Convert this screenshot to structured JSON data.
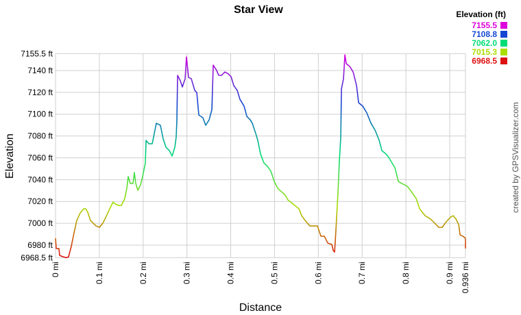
{
  "chart_data": {
    "type": "line",
    "title": "Star View",
    "xlabel": "Distance",
    "ylabel": "Elevation",
    "watermark": "created by GPSVisualizer.com",
    "legend_title": "Elevation (ft)",
    "legend": [
      {
        "value": 7155.5,
        "label": "7155.5",
        "color": "#dd00dd"
      },
      {
        "value": 7108.8,
        "label": "7108.8",
        "color": "#1446d2"
      },
      {
        "value": 7062.0,
        "label": "7062.0",
        "color": "#00dd77"
      },
      {
        "value": 7015.3,
        "label": "7015.3",
        "color": "#aadd00"
      },
      {
        "value": 6968.5,
        "label": "6968.5",
        "color": "#dd1111"
      }
    ],
    "grid": true,
    "xlim": [
      0,
      0.936
    ],
    "ylim": [
      6968.5,
      7155.5
    ],
    "xticks": [
      {
        "value": 0,
        "label": "0 mi"
      },
      {
        "value": 0.1,
        "label": "0.1 mi"
      },
      {
        "value": 0.2,
        "label": "0.2 mi"
      },
      {
        "value": 0.3,
        "label": "0.3 mi"
      },
      {
        "value": 0.4,
        "label": "0.4 mi"
      },
      {
        "value": 0.5,
        "label": "0.5 mi"
      },
      {
        "value": 0.6,
        "label": "0.6 mi"
      },
      {
        "value": 0.7,
        "label": "0.7 mi"
      },
      {
        "value": 0.8,
        "label": "0.8 mi"
      },
      {
        "value": 0.9,
        "label": "0.9 mi"
      },
      {
        "value": 0.936,
        "label": "0.936 mi"
      }
    ],
    "yticks": [
      {
        "value": 6968.5,
        "label": "6968.5 ft"
      },
      {
        "value": 6980,
        "label": "6980 ft"
      },
      {
        "value": 7000,
        "label": "7000 ft"
      },
      {
        "value": 7020,
        "label": "7020 ft"
      },
      {
        "value": 7040,
        "label": "7040 ft"
      },
      {
        "value": 7060,
        "label": "7060 ft"
      },
      {
        "value": 7080,
        "label": "7080 ft"
      },
      {
        "value": 7100,
        "label": "7100 ft"
      },
      {
        "value": 7120,
        "label": "7120 ft"
      },
      {
        "value": 7140,
        "label": "7140 ft"
      },
      {
        "value": 7155.5,
        "label": "7155.5 ft"
      }
    ],
    "x": [
      0,
      0.0016,
      0.0078,
      0.0094,
      0.0172,
      0.025,
      0.0297,
      0.036,
      0.0423,
      0.0485,
      0.0564,
      0.0642,
      0.0689,
      0.0736,
      0.0798,
      0.0845,
      0.0924,
      0.1002,
      0.108,
      0.1158,
      0.1237,
      0.1315,
      0.1362,
      0.144,
      0.1503,
      0.1581,
      0.1628,
      0.166,
      0.1706,
      0.1769,
      0.18,
      0.1832,
      0.1879,
      0.1941,
      0.1988,
      0.2051,
      0.2067,
      0.2129,
      0.2207,
      0.2239,
      0.2301,
      0.2395,
      0.2458,
      0.2521,
      0.2599,
      0.2662,
      0.2724,
      0.2755,
      0.2771,
      0.2787,
      0.2849,
      0.2896,
      0.2959,
      0.299,
      0.3037,
      0.31,
      0.3178,
      0.3225,
      0.3272,
      0.3366,
      0.3429,
      0.3507,
      0.357,
      0.3601,
      0.3679,
      0.3726,
      0.3789,
      0.3867,
      0.3945,
      0.4008,
      0.407,
      0.4149,
      0.4211,
      0.4305,
      0.4368,
      0.4446,
      0.4493,
      0.4571,
      0.4618,
      0.4681,
      0.4759,
      0.4838,
      0.4916,
      0.4994,
      0.5072,
      0.5245,
      0.5307,
      0.5464,
      0.5558,
      0.562,
      0.5699,
      0.5808,
      0.598,
      0.6059,
      0.6137,
      0.6215,
      0.6309,
      0.6341,
      0.6372,
      0.6403,
      0.645,
      0.6481,
      0.6513,
      0.6528,
      0.6575,
      0.6607,
      0.6638,
      0.6716,
      0.6795,
      0.6873,
      0.692,
      0.7014,
      0.7108,
      0.7202,
      0.7296,
      0.739,
      0.7452,
      0.7546,
      0.7609,
      0.7749,
      0.7828,
      0.7906,
      0.8031,
      0.8125,
      0.8235,
      0.8313,
      0.8438,
      0.8564,
      0.8673,
      0.8752,
      0.883,
      0.8908,
      0.9002,
      0.908,
      0.9143,
      0.9205,
      0.9237,
      0.9299,
      0.936,
      0.936
    ],
    "values": [
      6986.3,
      6976.9,
      6976.9,
      6970.6,
      6969.3,
      6968.5,
      6969.3,
      6978.8,
      6991.3,
      7002.6,
      7009.5,
      7013.3,
      7013.3,
      7010.1,
      7002.6,
      7000.7,
      6997.6,
      6996.3,
      7000.1,
      7006.4,
      7013.3,
      7019.5,
      7017.7,
      7016.4,
      7016.4,
      7022.7,
      7032.1,
      7042.8,
      7036.5,
      7036.5,
      7046.5,
      7036.5,
      7030.2,
      7035.2,
      7042.8,
      7055.3,
      7076.0,
      7072.9,
      7072.9,
      7079.1,
      7091.7,
      7089.8,
      7077.3,
      7069.7,
      7066.6,
      7061.6,
      7069.7,
      7079.1,
      7094.8,
      7135.6,
      7130.6,
      7124.9,
      7132.5,
      7152.5,
      7133.7,
      7132.5,
      7121.8,
      7119.9,
      7099.2,
      7096.7,
      7089.8,
      7094.8,
      7104.2,
      7145.0,
      7140,
      7135.6,
      7135.6,
      7138.7,
      7136.9,
      7134.4,
      7126.2,
      7121.8,
      7113.6,
      7107.4,
      7098.0,
      7094.8,
      7091.7,
      7082.3,
      7076.0,
      7063.5,
      7055.3,
      7052.2,
      7047.8,
      7038.4,
      7032.1,
      7025.8,
      7021.4,
      7016.4,
      7013.3,
      7007.0,
      7002.6,
      6997.6,
      6997.6,
      6988.2,
      6988.2,
      6981.9,
      6980.6,
      6975.0,
      6973.7,
      6994.4,
      7029.0,
      7057.2,
      7079.1,
      7123.1,
      7132.5,
      7154.4,
      7146.3,
      7143.8,
      7138.7,
      7126.2,
      7110.5,
      7107.4,
      7101.1,
      7091.7,
      7085.4,
      7076.0,
      7066.6,
      7063.5,
      7060.3,
      7050.9,
      7038.4,
      7036.5,
      7034.0,
      7029.0,
      7022.7,
      7013.3,
      7007.0,
      7003.9,
      6999.5,
      6996.3,
      6996.3,
      7000.7,
      7005.1,
      7007.0,
      7003.9,
      6998.8,
      6989.4,
      6988.2,
      6986.3,
      6976.9
    ]
  }
}
